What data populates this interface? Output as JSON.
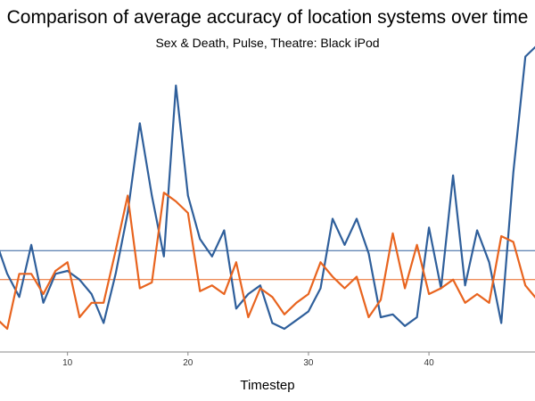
{
  "chart_data": {
    "type": "line",
    "title": "Comparison of average accuracy of location systems over time",
    "subtitle": "Sex & Death, Pulse, Theatre: Black iPod",
    "xlabel": "Timestep",
    "ylabel": "",
    "x_ticks": [
      10,
      20,
      30,
      40
    ],
    "xlim": [
      4.4,
      48.8
    ],
    "ylim": [
      0,
      1
    ],
    "grid": false,
    "colors": {
      "blue": "#2f5f9b",
      "orange": "#e8641f"
    },
    "x": [
      4,
      5,
      6,
      7,
      8,
      9,
      10,
      11,
      12,
      13,
      14,
      15,
      16,
      17,
      18,
      19,
      20,
      21,
      22,
      23,
      24,
      25,
      26,
      27,
      28,
      29,
      30,
      31,
      32,
      33,
      34,
      35,
      36,
      37,
      38,
      39,
      40,
      41,
      42,
      43,
      44,
      45,
      46,
      47,
      48,
      49
    ],
    "series": [
      {
        "color": "#2f5f9b",
        "values": [
          0.39,
          0.27,
          0.19,
          0.37,
          0.17,
          0.27,
          0.28,
          0.25,
          0.2,
          0.1,
          0.27,
          0.48,
          0.79,
          0.54,
          0.33,
          0.92,
          0.54,
          0.39,
          0.33,
          0.42,
          0.15,
          0.2,
          0.23,
          0.1,
          0.08,
          0.11,
          0.14,
          0.22,
          0.46,
          0.37,
          0.46,
          0.34,
          0.12,
          0.13,
          0.09,
          0.12,
          0.43,
          0.22,
          0.61,
          0.23,
          0.42,
          0.31,
          0.1,
          0.62,
          1.02,
          1.06
        ]
      },
      {
        "color": "#e8641f",
        "values": [
          0.12,
          0.08,
          0.27,
          0.27,
          0.2,
          0.28,
          0.31,
          0.12,
          0.17,
          0.17,
          0.35,
          0.54,
          0.22,
          0.24,
          0.55,
          0.52,
          0.48,
          0.21,
          0.23,
          0.2,
          0.31,
          0.12,
          0.22,
          0.19,
          0.13,
          0.17,
          0.2,
          0.31,
          0.26,
          0.22,
          0.26,
          0.12,
          0.18,
          0.41,
          0.22,
          0.37,
          0.2,
          0.22,
          0.25,
          0.17,
          0.2,
          0.17,
          0.4,
          0.38,
          0.23,
          0.18
        ]
      }
    ],
    "reference_lines": [
      {
        "color": "#2f5f9b",
        "value": 0.35
      },
      {
        "color": "#e8641f",
        "value": 0.25
      }
    ]
  }
}
